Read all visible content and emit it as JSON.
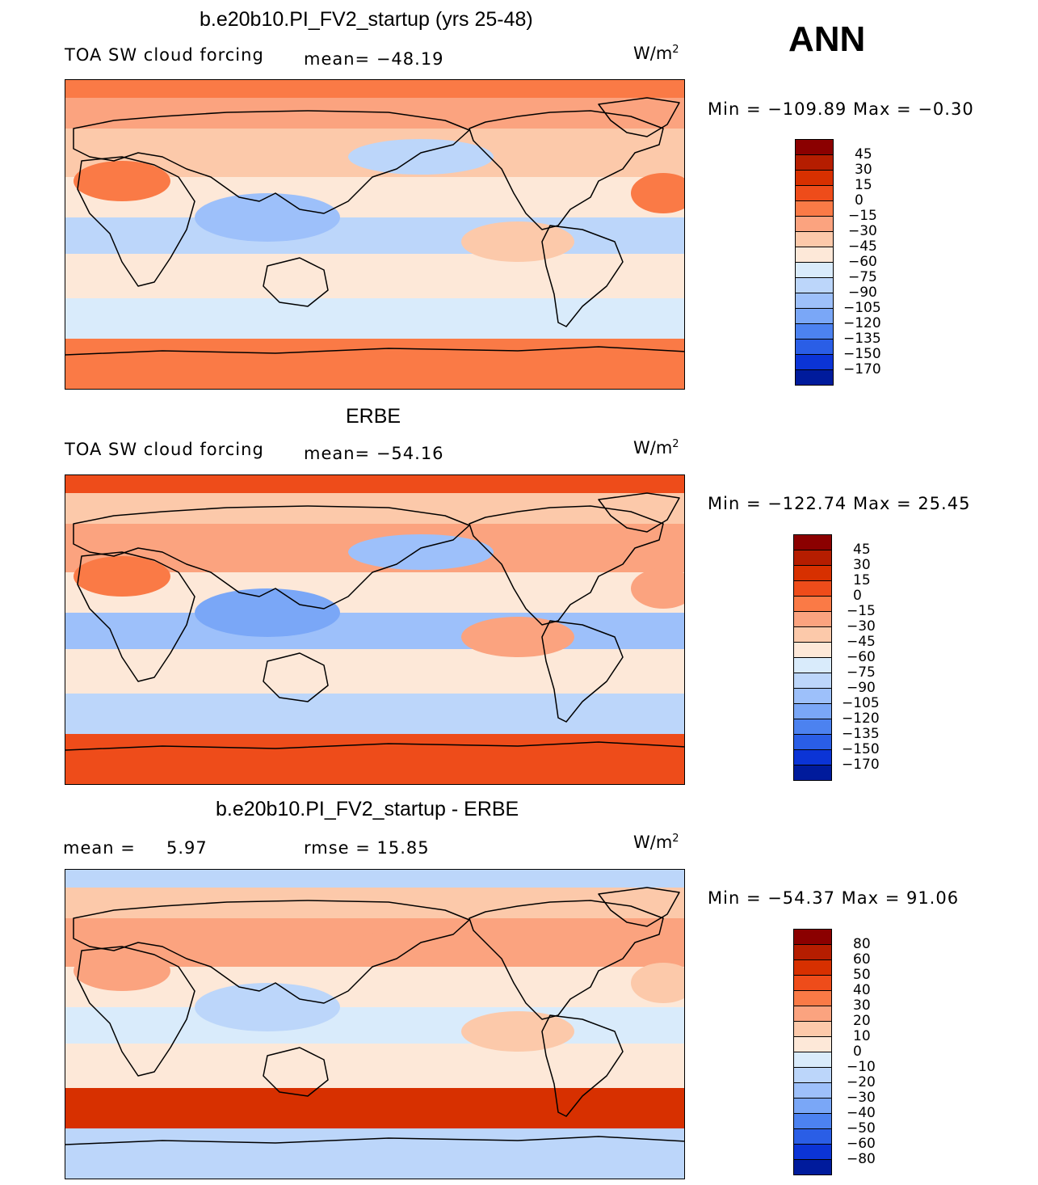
{
  "season": "ANN",
  "panels": [
    {
      "id": "model",
      "title": "b.e20b10.PI_FV2_startup (yrs 25-48)",
      "variable": "TOA SW cloud forcing",
      "stat1": "mean=  −48.19",
      "stat2": "",
      "units": "W/m",
      "units_exp": "2",
      "minmax": "Min  =  −109.89  Max  =    −0.30",
      "colorbar": {
        "labels": [
          "45",
          "30",
          "15",
          "0",
          "−15",
          "−30",
          "−45",
          "−60",
          "−75",
          "−90",
          "−105",
          "−120",
          "−135",
          "−150",
          "−170"
        ],
        "colors": [
          "#8b0000",
          "#b51d00",
          "#d73000",
          "#ee4c1a",
          "#fa7a46",
          "#fba37f",
          "#fcc9aa",
          "#fde8d8",
          "#d9ebfb",
          "#bcd6fa",
          "#9dc0fa",
          "#7aa7f7",
          "#4c82f0",
          "#2a5ee6",
          "#0b34d6",
          "#001b9c"
        ]
      },
      "field_colors": {
        "polar": "#fa7a46",
        "land": "#fba37f",
        "subtropic": "#fcc9aa",
        "desert": "#fa7a46",
        "storm": "#bcd6fa",
        "warmpool": "#9dc0fa",
        "npac": "#bcd6fa",
        "stratus": "#fcc9aa",
        "neutral": "#fde8d8",
        "atlantic": "#fa7a46",
        "souther": "#d9ebfb"
      }
    },
    {
      "id": "obs",
      "title": "ERBE",
      "variable": "TOA SW cloud forcing",
      "stat1": "mean=  −54.16",
      "stat2": "",
      "units": "W/m",
      "units_exp": "2",
      "minmax": "Min  =  −122.74  Max  =    25.45",
      "colorbar": {
        "labels": [
          "45",
          "30",
          "15",
          "0",
          "−15",
          "−30",
          "−45",
          "−60",
          "−75",
          "−90",
          "−105",
          "−120",
          "−135",
          "−150",
          "−170"
        ],
        "colors": [
          "#8b0000",
          "#b51d00",
          "#d73000",
          "#ee4c1a",
          "#fa7a46",
          "#fba37f",
          "#fcc9aa",
          "#fde8d8",
          "#d9ebfb",
          "#bcd6fa",
          "#9dc0fa",
          "#7aa7f7",
          "#4c82f0",
          "#2a5ee6",
          "#0b34d6",
          "#001b9c"
        ]
      },
      "field_colors": {
        "polar": "#ee4c1a",
        "land": "#fcc9aa",
        "subtropic": "#fba37f",
        "desert": "#fa7a46",
        "storm": "#9dc0fa",
        "warmpool": "#7aa7f7",
        "npac": "#9dc0fa",
        "stratus": "#fba37f",
        "neutral": "#fde8d8",
        "atlantic": "#fba37f",
        "souther": "#bcd6fa"
      }
    },
    {
      "id": "diff",
      "title": "b.e20b10.PI_FV2_startup - ERBE",
      "variable": "mean  =",
      "stat1": "5.97",
      "stat2": "rmse  =     15.85",
      "units": "W/m",
      "units_exp": "2",
      "minmax": "Min  =  −54.37  Max  =    91.06",
      "colorbar": {
        "labels": [
          "80",
          "60",
          "50",
          "40",
          "30",
          "20",
          "10",
          "0",
          "−10",
          "−20",
          "−30",
          "−40",
          "−50",
          "−60",
          "−80"
        ],
        "colors": [
          "#8b0000",
          "#b51d00",
          "#d73000",
          "#ee4c1a",
          "#fa7a46",
          "#fba37f",
          "#fcc9aa",
          "#fde8d8",
          "#d9ebfb",
          "#bcd6fa",
          "#9dc0fa",
          "#7aa7f7",
          "#4c82f0",
          "#2a5ee6",
          "#0b34d6",
          "#001b9c"
        ]
      },
      "field_colors": {
        "polar": "#bcd6fa",
        "land": "#fcc9aa",
        "subtropic": "#fba37f",
        "desert": "#fba37f",
        "storm": "#d9ebfb",
        "warmpool": "#bcd6fa",
        "npac": "#fba37f",
        "stratus": "#fcc9aa",
        "neutral": "#fde8d8",
        "atlantic": "#fcc9aa",
        "souther": "#d73000"
      }
    }
  ]
}
